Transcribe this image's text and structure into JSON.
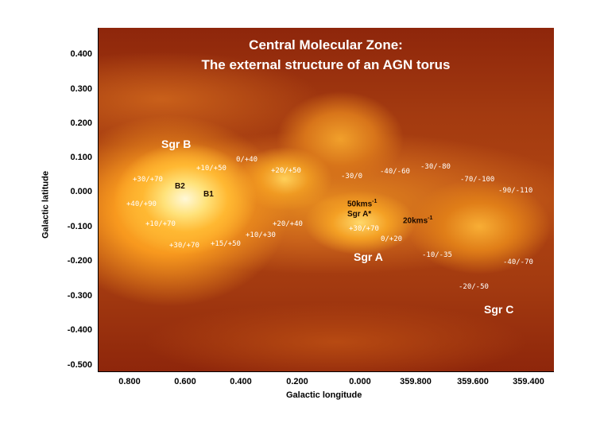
{
  "title_line1": "Central Molecular Zone:",
  "title_line2": "The external structure of an AGN torus",
  "xlabel": "Galactic longitude",
  "ylabel": "Galactic latitude",
  "y_ticks": [
    "0.400",
    "0.300",
    "0.200",
    "0.100",
    "0.000",
    "-0.100",
    "-0.200",
    "-0.300",
    "-0.400",
    "-0.500"
  ],
  "x_ticks": [
    "0.800",
    "0.600",
    "0.400",
    "0.200",
    "0.000",
    "359.800",
    "359.600",
    "359.400"
  ],
  "regions": {
    "sgr_b": "Sgr B",
    "sgr_a": "Sgr A",
    "sgr_c": "Sgr C",
    "b1": "B1",
    "b2": "B2",
    "sgr_a_star": "Sgr A*"
  },
  "flows": {
    "fifty": "50kms",
    "twenty": "20kms",
    "unit_sup": "-1"
  },
  "velocities": [
    "+30/+70",
    "+40/+90",
    "+10/+70",
    "+30/+70",
    "+10/+50",
    "0/+40",
    "+20/+50",
    "+15/+50",
    "+10/+30",
    "+20/+40",
    "-30/0",
    "-40/-60",
    "-30/-80",
    "-70/-100",
    "-90/-110",
    "+30/+70",
    "0/+20",
    "-10/-35",
    "-20/-50",
    "-40/-70"
  ]
}
